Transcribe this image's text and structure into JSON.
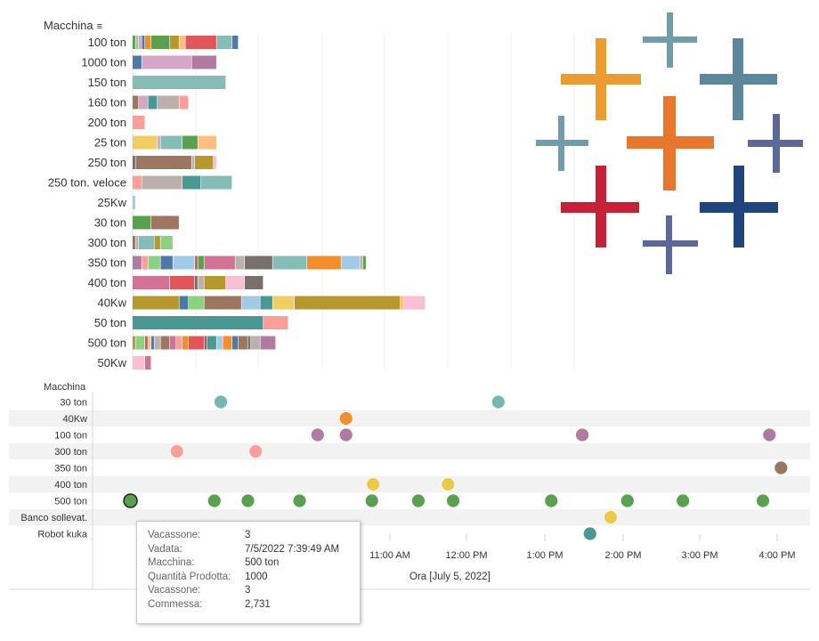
{
  "chart_data": [
    {
      "type": "bar",
      "stacked": true,
      "orientation": "horizontal",
      "dimension_label": "Macchina",
      "categories": [
        "100 ton",
        "1000 ton",
        "150 ton",
        "160 ton",
        "200 ton",
        "25 ton",
        "250 ton",
        "250 ton. veloce",
        "25Kw",
        "30 ton",
        "300 ton",
        "350 ton",
        "400 ton",
        "40Kw",
        "50 ton",
        "500 ton",
        "50Kw"
      ],
      "segments": [
        [
          [
            "#59a14f",
            1
          ],
          [
            "#8cd17d",
            1
          ],
          [
            "#d4a6c8",
            1
          ],
          [
            "#4e79a7",
            1
          ],
          [
            "#f28e2b",
            2
          ],
          [
            "#59a14f",
            6
          ],
          [
            "#b6992d",
            3
          ],
          [
            "#ffbe7d",
            2
          ],
          [
            "#e15759",
            10
          ],
          [
            "#86bcb6",
            5
          ],
          [
            "#4e79a7",
            2
          ]
        ],
        [
          [
            "#4e79a7",
            3
          ],
          [
            "#d4a6c8",
            16
          ],
          [
            "#b07aa1",
            8
          ]
        ],
        [
          [
            "#86bcb6",
            30
          ]
        ],
        [
          [
            "#9d7660",
            2
          ],
          [
            "#d4a6c8",
            3
          ],
          [
            "#499894",
            3
          ],
          [
            "#bab0ac",
            7
          ],
          [
            "#ff9d9a",
            3
          ]
        ],
        [
          [
            "#ff9d9a",
            4
          ]
        ],
        [
          [
            "#f1ce63",
            8
          ],
          [
            "#d4a6c8",
            1
          ],
          [
            "#86bcb6",
            7
          ],
          [
            "#59a14f",
            5
          ],
          [
            "#ffbe7d",
            6
          ]
        ],
        [
          [
            "#79706e",
            1
          ],
          [
            "#9d7660",
            18
          ],
          [
            "#bab0ac",
            1
          ],
          [
            "#b6992d",
            6
          ],
          [
            "#fabfd2",
            1
          ]
        ],
        [
          [
            "#ff9d9a",
            3
          ],
          [
            "#bab0ac",
            13
          ],
          [
            "#499894",
            6
          ],
          [
            "#86bcb6",
            10
          ]
        ],
        [
          [
            "#a0cbe8",
            1
          ]
        ],
        [
          [
            "#59a14f",
            6
          ],
          [
            "#9d7660",
            9
          ]
        ],
        [
          [
            "#9d7660",
            1
          ],
          [
            "#bab0ac",
            1
          ],
          [
            "#86bcb6",
            5
          ],
          [
            "#b6992d",
            2
          ],
          [
            "#8cd17d",
            4
          ]
        ],
        [
          [
            "#b07aa1",
            3
          ],
          [
            "#ff9d9a",
            2
          ],
          [
            "#8cd17d",
            4
          ],
          [
            "#4e79a7",
            4
          ],
          [
            "#a0cbe8",
            7
          ],
          [
            "#e15759",
            1
          ],
          [
            "#59a14f",
            2
          ],
          [
            "#d37295",
            10
          ],
          [
            "#bab0ac",
            3
          ],
          [
            "#79706e",
            9
          ],
          [
            "#86bcb6",
            11
          ],
          [
            "#f28e2b",
            11
          ],
          [
            "#a0cbe8",
            6
          ],
          [
            "#bab0ac",
            1
          ],
          [
            "#59a14f",
            1
          ]
        ],
        [
          [
            "#d37295",
            12
          ],
          [
            "#e15759",
            8
          ],
          [
            "#79706e",
            1
          ],
          [
            "#bab0ac",
            2
          ],
          [
            "#b6992d",
            7
          ],
          [
            "#fabfd2",
            6
          ],
          [
            "#79706e",
            6
          ]
        ],
        [
          [
            "#b6992d",
            15
          ],
          [
            "#4e79a7",
            3
          ],
          [
            "#8cd17d",
            5
          ],
          [
            "#9d7660",
            12
          ],
          [
            "#a0cbe8",
            6
          ],
          [
            "#499894",
            4
          ],
          [
            "#f1ce63",
            7
          ],
          [
            "#b6992d",
            34
          ],
          [
            "#ffbe7d",
            1
          ],
          [
            "#fabfd2",
            7
          ]
        ],
        [
          [
            "#499894",
            42
          ],
          [
            "#ff9d9a",
            8
          ]
        ],
        [
          [
            "#b6992d",
            1
          ],
          [
            "#8cd17d",
            3
          ],
          [
            "#e15759",
            1
          ],
          [
            "#ffbe7d",
            1
          ],
          [
            "#4e79a7",
            1
          ],
          [
            "#bab0ac",
            2
          ],
          [
            "#9d7660",
            3
          ],
          [
            "#d37295",
            2
          ],
          [
            "#ff9d9a",
            2
          ],
          [
            "#f28e2b",
            2
          ],
          [
            "#e15759",
            5
          ],
          [
            "#79706e",
            1
          ],
          [
            "#499894",
            3
          ],
          [
            "#a0cbe8",
            2
          ],
          [
            "#f28e2b",
            3
          ],
          [
            "#4e79a7",
            2
          ],
          [
            "#9d7660",
            3
          ],
          [
            "#79706e",
            1
          ],
          [
            "#bab0ac",
            3
          ],
          [
            "#b07aa1",
            5
          ]
        ],
        [
          [
            "#fabfd2",
            4
          ],
          [
            "#d37295",
            2
          ]
        ]
      ]
    },
    {
      "type": "scatter",
      "dimension_label": "Macchina",
      "rows": [
        "30 ton",
        "40Kw",
        "100 ton",
        "300 ton",
        "350 ton",
        "400 ton",
        "500 ton",
        "Banco sollevat.",
        "Robot kuka"
      ],
      "x_ticks": [
        "11:00 AM",
        "12:00 PM",
        "1:00 PM",
        "2:00 PM",
        "3:00 PM",
        "4:00 PM"
      ],
      "xlabel": "Ora [July 5, 2022]",
      "points": [
        {
          "row": "30 ton",
          "x": [
            "8:49",
            "12:24"
          ],
          "color": "#76b7b2"
        },
        {
          "row": "40Kw",
          "x": [
            "10:26"
          ],
          "color": "#f28e2b"
        },
        {
          "row": "100 ton",
          "x": [
            "10:04",
            "10:26",
            "13:29",
            "15:54"
          ],
          "color": "#b07aa1"
        },
        {
          "row": "300 ton",
          "x": [
            "8:15",
            "9:16"
          ],
          "color": "#ff9d9a"
        },
        {
          "row": "350 ton",
          "x": [
            "16:03"
          ],
          "color": "#9c755f"
        },
        {
          "row": "400 ton",
          "x": [
            "10:47",
            "11:45"
          ],
          "color": "#edc948"
        },
        {
          "row": "500 ton",
          "x": [
            "7:39",
            "8:44",
            "9:10",
            "9:50",
            "10:46",
            "11:22",
            "11:49",
            "13:05",
            "14:04",
            "14:47",
            "15:49"
          ],
          "color": "#59a14f"
        },
        {
          "row": "Banco sollevat.",
          "x": [
            "13:51"
          ],
          "color": "#edc948"
        },
        {
          "row": "Robot kuka",
          "x": [
            "13:35"
          ],
          "color": "#499894"
        }
      ],
      "selected_point": {
        "row": "500 ton",
        "x": "7:39"
      }
    }
  ],
  "tooltip": {
    "rows": [
      {
        "label": "Vacassone:",
        "value": "3"
      },
      {
        "label": "Vadata:",
        "value": "7/5/2022 7:39:49 AM"
      },
      {
        "label": "Macchina:",
        "value": "500 ton"
      },
      {
        "label": "Quantità Prodotta:",
        "value": "1000"
      },
      {
        "label": "Vacassone:",
        "value": "3"
      },
      {
        "label": "Commessa:",
        "value": "2,731"
      }
    ]
  },
  "logo": {
    "name": "tableau-logo"
  }
}
